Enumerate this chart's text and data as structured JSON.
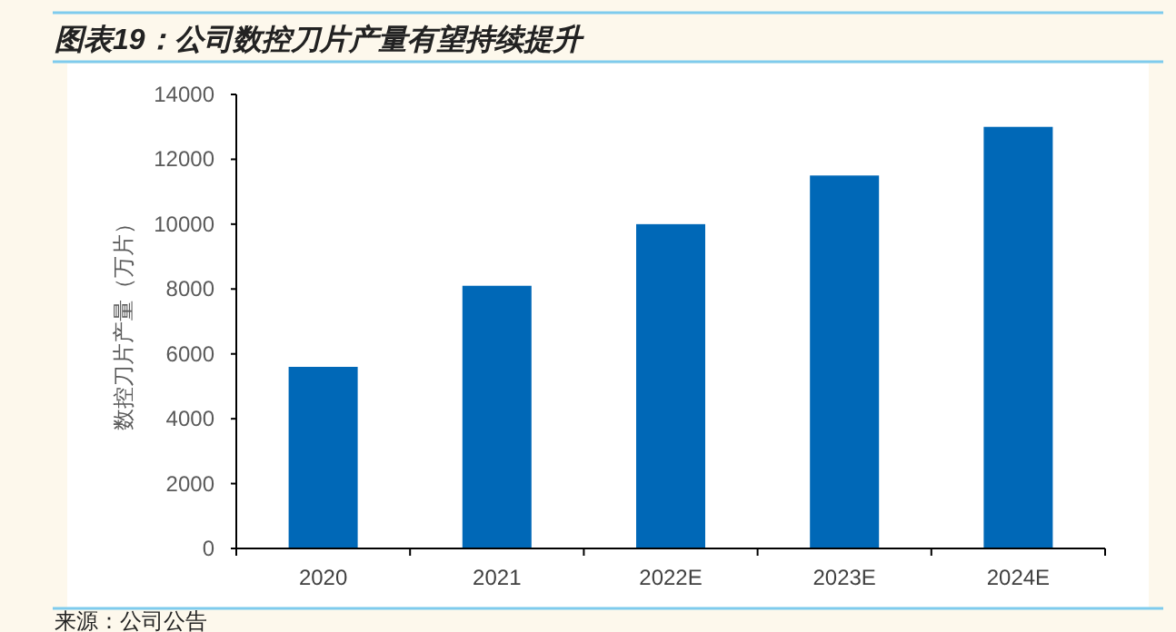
{
  "chart_data": {
    "type": "bar",
    "title": "图表19：公司数控刀片产量有望持续提升",
    "ylabel": "数控刀片产量（万片）",
    "categories": [
      "2020",
      "2021",
      "2022E",
      "2023E",
      "2024E"
    ],
    "values": [
      5600,
      8100,
      10000,
      11500,
      13000
    ],
    "color": "#0068b7",
    "ylim": [
      0,
      14000
    ],
    "yticks": [
      0,
      2000,
      4000,
      6000,
      8000,
      10000,
      12000,
      14000
    ],
    "grid": false,
    "annotations": [
      "来源：公司公告"
    ]
  }
}
